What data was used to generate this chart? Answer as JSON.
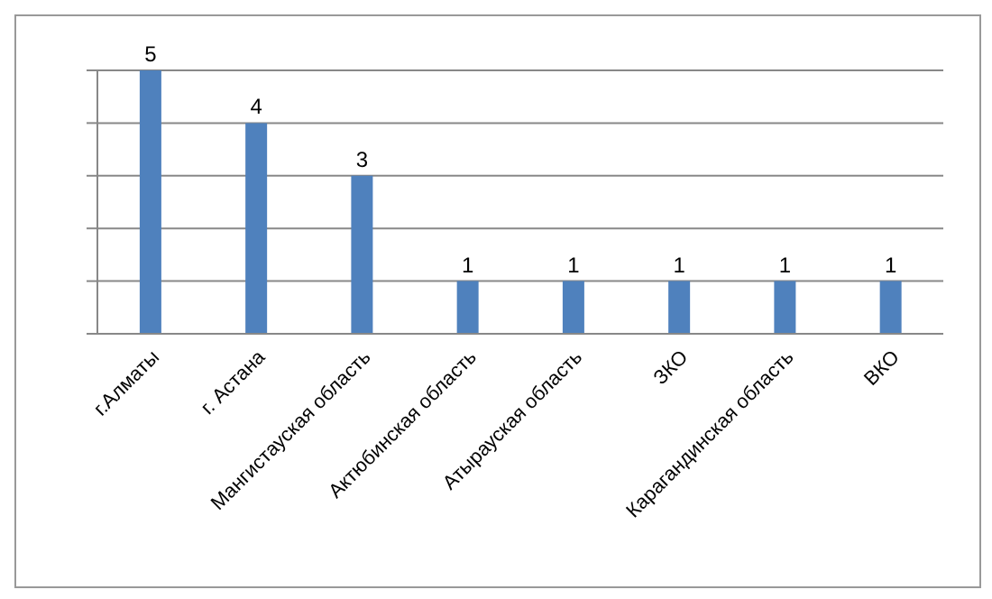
{
  "chart_data": {
    "type": "bar",
    "categories": [
      "г.Алматы",
      "г. Астана",
      "Мангистауская область",
      "Актюбинская область",
      "Атырауская область",
      "ЗКО",
      "Карагандинская область",
      "ВКО"
    ],
    "values": [
      5,
      4,
      3,
      1,
      1,
      1,
      1,
      1
    ],
    "color": "#4f81bd",
    "data_labels": true,
    "grid": "y",
    "tick_labels": "x"
  }
}
